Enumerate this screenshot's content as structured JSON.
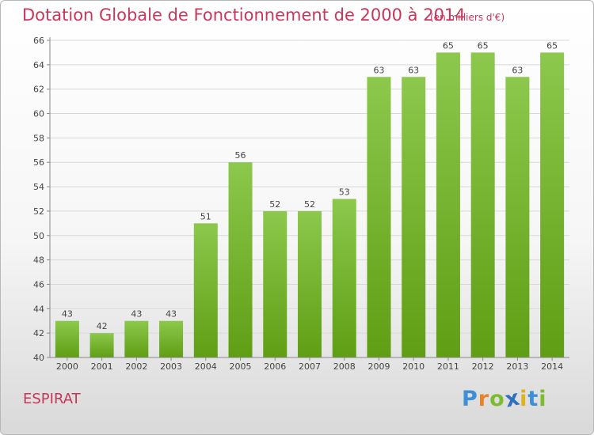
{
  "title": "Dotation Globale de Fonctionnement de 2000 à 2014",
  "subtitle": "(en milliers d'€)",
  "commune": "ESPIRAT",
  "logo": {
    "text": "Proxiti",
    "letters": [
      {
        "ch": "P",
        "color": "#3f8fd6"
      },
      {
        "ch": "r",
        "color": "#e8832a"
      },
      {
        "ch": "o",
        "color": "#7bbd2e"
      },
      {
        "ch": "x",
        "color": "#2f6fc0"
      },
      {
        "ch": "i",
        "color": "#e0b21c"
      },
      {
        "ch": "t",
        "color": "#3f8fd6"
      },
      {
        "ch": "i",
        "color": "#7bbd2e"
      }
    ]
  },
  "colors": {
    "title": "#c8365a",
    "bar_top": "#8cc84c",
    "bar_bottom": "#5f9e14"
  },
  "chart_data": {
    "type": "bar",
    "categories": [
      "2000",
      "2001",
      "2002",
      "2003",
      "2004",
      "2005",
      "2006",
      "2007",
      "2008",
      "2009",
      "2010",
      "2011",
      "2012",
      "2013",
      "2014"
    ],
    "values": [
      43,
      42,
      43,
      43,
      51,
      56,
      52,
      52,
      53,
      63,
      63,
      65,
      65,
      63,
      65
    ],
    "ylim": [
      40,
      66
    ],
    "yticks": [
      40,
      42,
      44,
      46,
      48,
      50,
      52,
      54,
      56,
      58,
      60,
      62,
      64,
      66
    ],
    "grid": true,
    "legend": "none"
  }
}
